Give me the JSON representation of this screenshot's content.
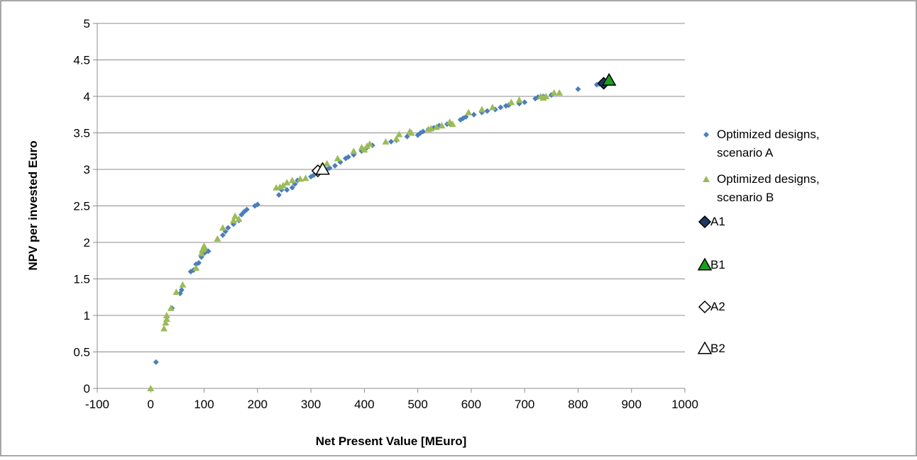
{
  "chart_data": {
    "type": "scatter",
    "title": "",
    "xlabel": "Net Present Value [MEuro]",
    "ylabel": "NPV per invested Euro",
    "xlim": [
      -100,
      1000
    ],
    "ylim": [
      0,
      5
    ],
    "x_ticks": [
      "-100",
      "0",
      "100",
      "200",
      "300",
      "400",
      "500",
      "600",
      "700",
      "800",
      "900",
      "1000"
    ],
    "y_ticks": [
      "0",
      "0.5",
      "1",
      "1.5",
      "2",
      "2.5",
      "3",
      "3.5",
      "4",
      "4.5",
      "5"
    ],
    "grid": "horizontal",
    "legend_position": "right",
    "series": [
      {
        "name": "Optimized designs, scenario A",
        "legend_lines": [
          "Optimized designs,",
          "scenario A"
        ],
        "marker": "diamond",
        "color": "#4a7ebb",
        "points": [
          [
            10,
            0.36
          ],
          [
            40,
            1.1
          ],
          [
            55,
            1.3
          ],
          [
            58,
            1.35
          ],
          [
            75,
            1.6
          ],
          [
            80,
            1.62
          ],
          [
            85,
            1.7
          ],
          [
            90,
            1.72
          ],
          [
            95,
            1.8
          ],
          [
            100,
            1.85
          ],
          [
            105,
            1.88
          ],
          [
            108,
            1.88
          ],
          [
            135,
            2.1
          ],
          [
            140,
            2.15
          ],
          [
            145,
            2.2
          ],
          [
            155,
            2.25
          ],
          [
            165,
            2.3
          ],
          [
            170,
            2.38
          ],
          [
            175,
            2.42
          ],
          [
            180,
            2.45
          ],
          [
            195,
            2.5
          ],
          [
            200,
            2.52
          ],
          [
            240,
            2.65
          ],
          [
            245,
            2.72
          ],
          [
            255,
            2.72
          ],
          [
            265,
            2.75
          ],
          [
            270,
            2.8
          ],
          [
            275,
            2.85
          ],
          [
            300,
            2.9
          ],
          [
            305,
            2.92
          ],
          [
            330,
            3.0
          ],
          [
            335,
            3.02
          ],
          [
            345,
            3.05
          ],
          [
            355,
            3.1
          ],
          [
            365,
            3.15
          ],
          [
            370,
            3.17
          ],
          [
            380,
            3.2
          ],
          [
            395,
            3.25
          ],
          [
            405,
            3.3
          ],
          [
            415,
            3.33
          ],
          [
            450,
            3.38
          ],
          [
            460,
            3.4
          ],
          [
            480,
            3.45
          ],
          [
            500,
            3.47
          ],
          [
            505,
            3.5
          ],
          [
            510,
            3.52
          ],
          [
            520,
            3.55
          ],
          [
            530,
            3.57
          ],
          [
            540,
            3.6
          ],
          [
            555,
            3.62
          ],
          [
            560,
            3.63
          ],
          [
            580,
            3.68
          ],
          [
            585,
            3.7
          ],
          [
            590,
            3.72
          ],
          [
            605,
            3.75
          ],
          [
            620,
            3.78
          ],
          [
            630,
            3.8
          ],
          [
            645,
            3.82
          ],
          [
            655,
            3.85
          ],
          [
            665,
            3.87
          ],
          [
            670,
            3.88
          ],
          [
            690,
            3.9
          ],
          [
            700,
            3.92
          ],
          [
            720,
            3.97
          ],
          [
            725,
            3.99
          ],
          [
            735,
            4.0
          ],
          [
            750,
            4.02
          ],
          [
            800,
            4.1
          ],
          [
            835,
            4.16
          ],
          [
            840,
            4.17
          ]
        ]
      },
      {
        "name": "Optimized designs, scenario B",
        "legend_lines": [
          "Optimized designs,",
          "scenario B"
        ],
        "marker": "triangle",
        "color": "#9bbb59",
        "points": [
          [
            0,
            0.0
          ],
          [
            25,
            0.82
          ],
          [
            28,
            0.9
          ],
          [
            30,
            0.95
          ],
          [
            30,
            1.0
          ],
          [
            38,
            1.1
          ],
          [
            48,
            1.32
          ],
          [
            60,
            1.42
          ],
          [
            85,
            1.65
          ],
          [
            95,
            1.85
          ],
          [
            97,
            1.9
          ],
          [
            100,
            1.92
          ],
          [
            100,
            1.95
          ],
          [
            125,
            2.05
          ],
          [
            135,
            2.2
          ],
          [
            155,
            2.3
          ],
          [
            158,
            2.36
          ],
          [
            165,
            2.32
          ],
          [
            235,
            2.75
          ],
          [
            242,
            2.76
          ],
          [
            248,
            2.78
          ],
          [
            255,
            2.82
          ],
          [
            265,
            2.85
          ],
          [
            280,
            2.87
          ],
          [
            290,
            2.88
          ],
          [
            320,
            3.05
          ],
          [
            330,
            3.08
          ],
          [
            350,
            3.15
          ],
          [
            380,
            3.25
          ],
          [
            395,
            3.3
          ],
          [
            400,
            3.27
          ],
          [
            405,
            3.32
          ],
          [
            410,
            3.35
          ],
          [
            440,
            3.38
          ],
          [
            460,
            3.42
          ],
          [
            465,
            3.48
          ],
          [
            485,
            3.52
          ],
          [
            488,
            3.5
          ],
          [
            520,
            3.55
          ],
          [
            525,
            3.56
          ],
          [
            535,
            3.58
          ],
          [
            545,
            3.6
          ],
          [
            560,
            3.65
          ],
          [
            565,
            3.62
          ],
          [
            595,
            3.78
          ],
          [
            620,
            3.82
          ],
          [
            640,
            3.85
          ],
          [
            675,
            3.92
          ],
          [
            690,
            3.95
          ],
          [
            730,
            4.0
          ],
          [
            735,
            3.98
          ],
          [
            740,
            4.0
          ],
          [
            755,
            4.05
          ],
          [
            765,
            4.05
          ]
        ]
      },
      {
        "name": "A1",
        "legend_lines": [
          "A1"
        ],
        "marker": "diamond-large",
        "color": "#1f3864",
        "points": [
          [
            848,
            4.18
          ]
        ]
      },
      {
        "name": "B1",
        "legend_lines": [
          "B1"
        ],
        "marker": "triangle-large",
        "color": "#1e9e1e",
        "points": [
          [
            858,
            4.22
          ]
        ]
      },
      {
        "name": "A2",
        "legend_lines": [
          "A2"
        ],
        "marker": "diamond-large",
        "color": "#ffffff",
        "points": [
          [
            313,
            2.98
          ]
        ]
      },
      {
        "name": "B2",
        "legend_lines": [
          "B2"
        ],
        "marker": "triangle-large",
        "color": "#ffffff",
        "points": [
          [
            322,
            3.0
          ]
        ]
      }
    ]
  }
}
